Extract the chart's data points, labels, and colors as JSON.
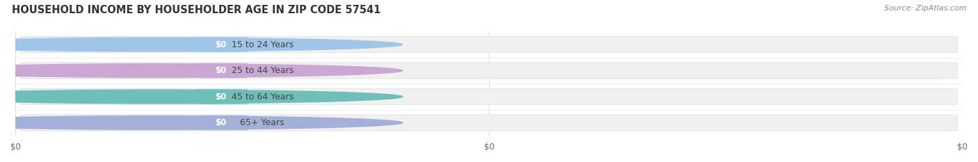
{
  "title": "HOUSEHOLD INCOME BY HOUSEHOLDER AGE IN ZIP CODE 57541",
  "source": "Source: ZipAtlas.com",
  "categories": [
    "15 to 24 Years",
    "25 to 44 Years",
    "45 to 64 Years",
    "65+ Years"
  ],
  "values": [
    0,
    0,
    0,
    0
  ],
  "bar_colors": [
    "#9fc5e8",
    "#c9a8d4",
    "#6dbfb8",
    "#a4b0d8"
  ],
  "background_color": "#ffffff",
  "plot_bg_color": "#ffffff",
  "bar_bg_color": "#f0f0f0",
  "bar_border_color": "#e0e0e0",
  "title_fontsize": 10.5,
  "label_fontsize": 9,
  "value_fontsize": 8.5,
  "tick_fontsize": 8.5,
  "source_fontsize": 8,
  "xticks": [
    0,
    0.5,
    1.0
  ],
  "xtick_labels": [
    "$0",
    "$0",
    "$0"
  ],
  "xlim": [
    0,
    1
  ],
  "bar_height": 0.62,
  "n_bars": 4
}
